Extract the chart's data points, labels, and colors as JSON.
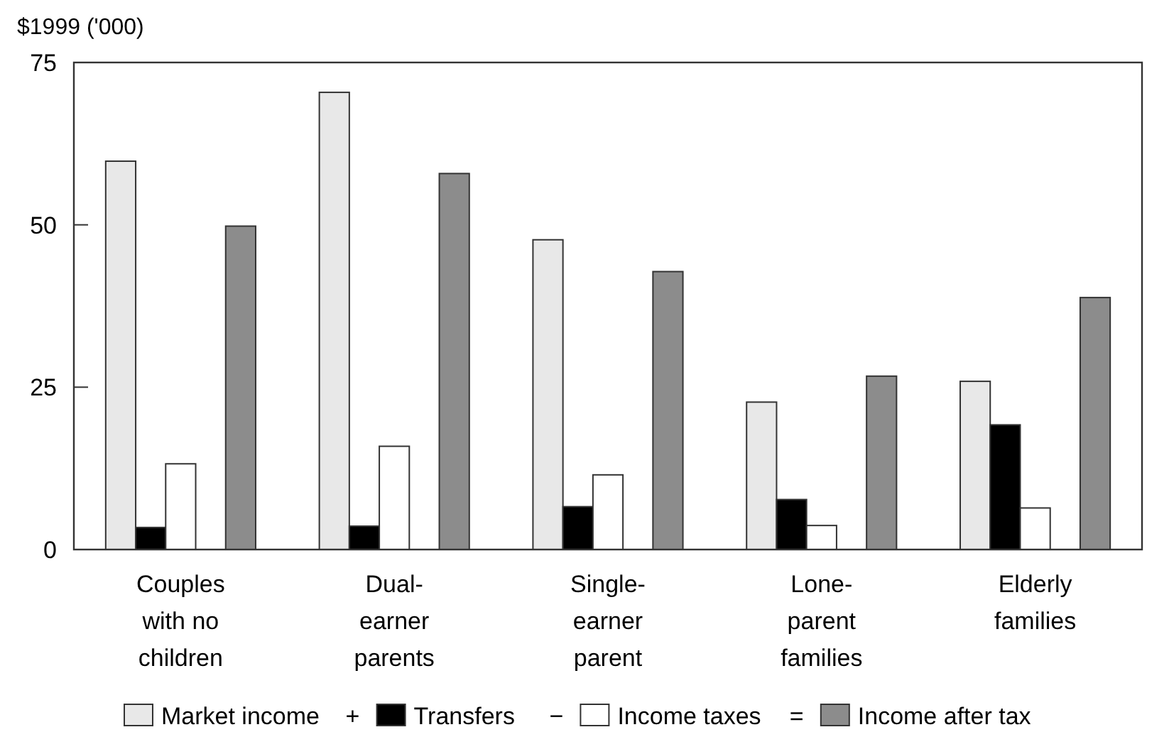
{
  "chart_data": {
    "type": "bar",
    "ylabel": "$1999 ('000)",
    "categories": [
      "Couples with no children",
      "Dual-earner parents",
      "Single-earner parent",
      "Lone-parent families",
      "Elderly families"
    ],
    "series": [
      {
        "name": "Market income",
        "color": "#e8e8e8",
        "values": [
          59.8,
          70.4,
          47.7,
          22.7,
          25.9
        ]
      },
      {
        "name": "Transfers",
        "color": "#000000",
        "values": [
          3.4,
          3.6,
          6.6,
          7.7,
          19.2
        ]
      },
      {
        "name": "Income taxes",
        "color": "#ffffff",
        "values": [
          13.2,
          15.9,
          11.5,
          3.7,
          6.4
        ]
      },
      {
        "name": "Income after tax",
        "color": "#8c8c8c",
        "values": [
          49.8,
          57.9,
          42.8,
          26.7,
          38.8
        ]
      }
    ],
    "annotations": [
      "+",
      "−",
      "="
    ],
    "ylim": [
      0,
      75
    ],
    "yticks": [
      0,
      25,
      50,
      75
    ],
    "grid": false,
    "legend": "bottom"
  }
}
